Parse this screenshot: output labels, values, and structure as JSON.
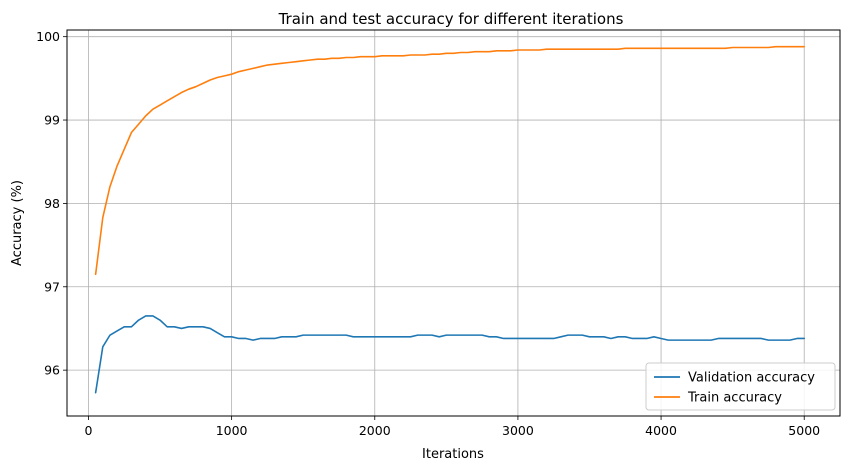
{
  "chart_data": {
    "type": "line",
    "title": "Train and test accuracy for different iterations",
    "xlabel": "Iterations",
    "ylabel": "Accuracy (%)",
    "xlim": [
      -150,
      5250
    ],
    "ylim": [
      95.45,
      100.08
    ],
    "xticks": [
      0,
      1000,
      2000,
      3000,
      4000,
      5000
    ],
    "yticks": [
      96,
      97,
      98,
      99,
      100
    ],
    "grid": true,
    "legend_position": "bottom-right",
    "x": [
      50,
      100,
      150,
      200,
      250,
      300,
      350,
      400,
      450,
      500,
      550,
      600,
      650,
      700,
      750,
      800,
      850,
      900,
      950,
      1000,
      1050,
      1100,
      1150,
      1200,
      1250,
      1300,
      1350,
      1400,
      1450,
      1500,
      1550,
      1600,
      1650,
      1700,
      1750,
      1800,
      1850,
      1900,
      1950,
      2000,
      2050,
      2100,
      2150,
      2200,
      2250,
      2300,
      2350,
      2400,
      2450,
      2500,
      2550,
      2600,
      2650,
      2700,
      2750,
      2800,
      2850,
      2900,
      2950,
      3000,
      3050,
      3100,
      3150,
      3200,
      3250,
      3300,
      3350,
      3400,
      3450,
      3500,
      3550,
      3600,
      3650,
      3700,
      3750,
      3800,
      3850,
      3900,
      3950,
      4000,
      4050,
      4100,
      4150,
      4200,
      4250,
      4300,
      4350,
      4400,
      4450,
      4500,
      4550,
      4600,
      4650,
      4700,
      4750,
      4800,
      4850,
      4900,
      4950,
      5000
    ],
    "series": [
      {
        "name": "Validation accuracy",
        "color": "#1f77b4",
        "values": [
          95.73,
          96.28,
          96.42,
          96.47,
          96.52,
          96.52,
          96.6,
          96.65,
          96.65,
          96.6,
          96.52,
          96.52,
          96.5,
          96.52,
          96.52,
          96.52,
          96.5,
          96.45,
          96.4,
          96.4,
          96.38,
          96.38,
          96.36,
          96.38,
          96.38,
          96.38,
          96.4,
          96.4,
          96.4,
          96.42,
          96.42,
          96.42,
          96.42,
          96.42,
          96.42,
          96.42,
          96.4,
          96.4,
          96.4,
          96.4,
          96.4,
          96.4,
          96.4,
          96.4,
          96.4,
          96.42,
          96.42,
          96.42,
          96.4,
          96.42,
          96.42,
          96.42,
          96.42,
          96.42,
          96.42,
          96.4,
          96.4,
          96.38,
          96.38,
          96.38,
          96.38,
          96.38,
          96.38,
          96.38,
          96.38,
          96.4,
          96.42,
          96.42,
          96.42,
          96.4,
          96.4,
          96.4,
          96.38,
          96.4,
          96.4,
          96.38,
          96.38,
          96.38,
          96.4,
          96.38,
          96.36,
          96.36,
          96.36,
          96.36,
          96.36,
          96.36,
          96.36,
          96.38,
          96.38,
          96.38,
          96.38,
          96.38,
          96.38,
          96.38,
          96.36,
          96.36,
          96.36,
          96.36,
          96.38,
          96.38
        ]
      },
      {
        "name": "Train accuracy",
        "color": "#ff7f0e",
        "values": [
          97.15,
          97.83,
          98.2,
          98.45,
          98.65,
          98.85,
          98.95,
          99.05,
          99.13,
          99.18,
          99.23,
          99.28,
          99.33,
          99.37,
          99.4,
          99.44,
          99.48,
          99.51,
          99.53,
          99.55,
          99.58,
          99.6,
          99.62,
          99.64,
          99.66,
          99.67,
          99.68,
          99.69,
          99.7,
          99.71,
          99.72,
          99.73,
          99.73,
          99.74,
          99.74,
          99.75,
          99.75,
          99.76,
          99.76,
          99.76,
          99.77,
          99.77,
          99.77,
          99.77,
          99.78,
          99.78,
          99.78,
          99.79,
          99.79,
          99.8,
          99.8,
          99.81,
          99.81,
          99.82,
          99.82,
          99.82,
          99.83,
          99.83,
          99.83,
          99.84,
          99.84,
          99.84,
          99.84,
          99.85,
          99.85,
          99.85,
          99.85,
          99.85,
          99.85,
          99.85,
          99.85,
          99.85,
          99.85,
          99.85,
          99.86,
          99.86,
          99.86,
          99.86,
          99.86,
          99.86,
          99.86,
          99.86,
          99.86,
          99.86,
          99.86,
          99.86,
          99.86,
          99.86,
          99.86,
          99.87,
          99.87,
          99.87,
          99.87,
          99.87,
          99.87,
          99.88,
          99.88,
          99.88,
          99.88,
          99.88
        ]
      }
    ]
  }
}
